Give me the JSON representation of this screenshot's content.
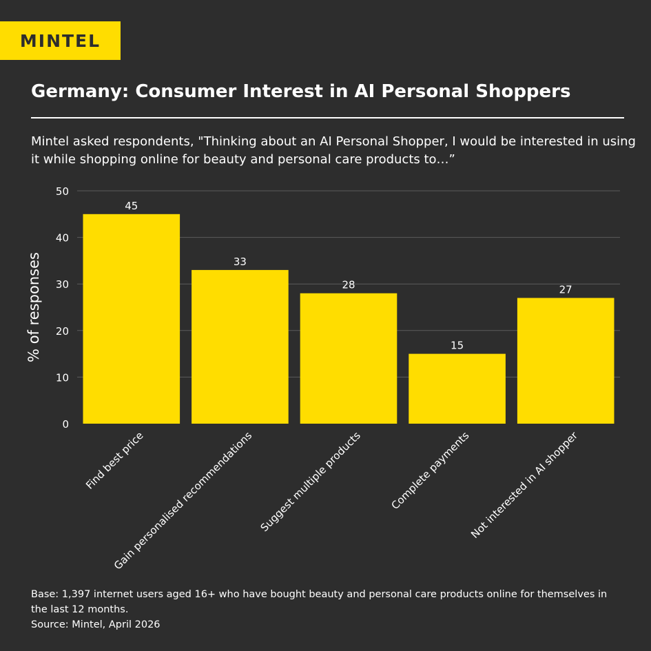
{
  "brand": {
    "logo_text": "MINTEL",
    "accent": "#ffdd00",
    "background": "#2d2d2d"
  },
  "title": "Germany: Consumer Interest in AI Personal Shoppers",
  "subtitle": "Mintel asked respondents, \"Thinking about an AI Personal Shopper, I would be interested in using it while shopping online for beauty and personal care products to…”",
  "footnote": {
    "base": "Base: 1,397 internet users aged 16+ who have bought beauty and personal care products online for themselves in the last 12 months.",
    "source": "Source: Mintel, April 2026"
  },
  "chart_data": {
    "type": "bar",
    "categories": [
      "Find best price",
      "Gain personalised recommendations",
      "Suggest multiple products",
      "Complete payments",
      "Not interested in AI shopper"
    ],
    "values": [
      45,
      33,
      28,
      15,
      27
    ],
    "ylabel": "% of responses",
    "xlabel": "",
    "ylim": [
      0,
      50
    ],
    "yticks": [
      0,
      10,
      20,
      30,
      40,
      50
    ],
    "grid": true,
    "data_labels": true,
    "bar_color": "#ffdd00"
  }
}
